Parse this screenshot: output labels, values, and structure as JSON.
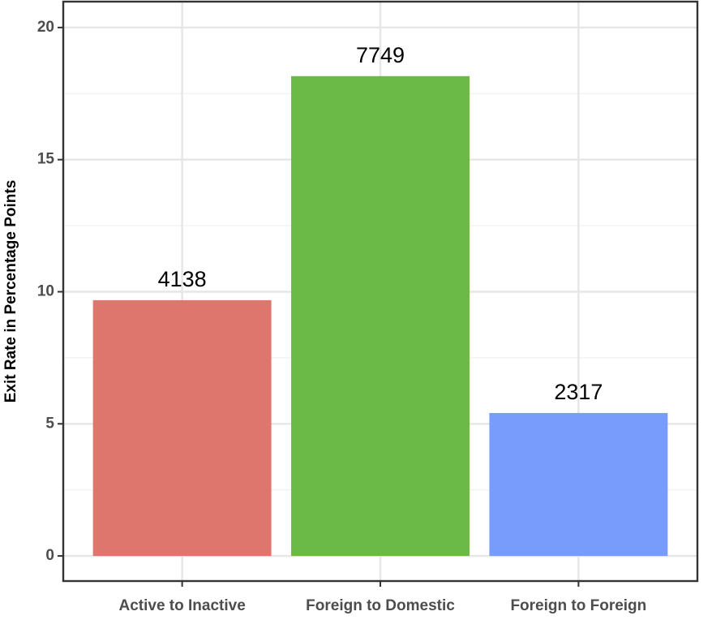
{
  "chart_data": {
    "type": "bar",
    "ylabel": "Exit Rate in Percentage Points",
    "categories": [
      "Active to Inactive",
      "Foreign to Domestic",
      "Foreign to Foreign"
    ],
    "values": [
      9.68,
      18.16,
      5.41
    ],
    "counts": [
      4138,
      7749,
      2317
    ],
    "colors": [
      "#df766e",
      "#6bb947",
      "#779cfb"
    ],
    "ylim": [
      -0.95,
      20.98
    ],
    "yticks": [
      0,
      5,
      10,
      15,
      20
    ],
    "yminor": [
      2.5,
      7.5,
      12.5,
      17.5
    ],
    "grid": true
  }
}
